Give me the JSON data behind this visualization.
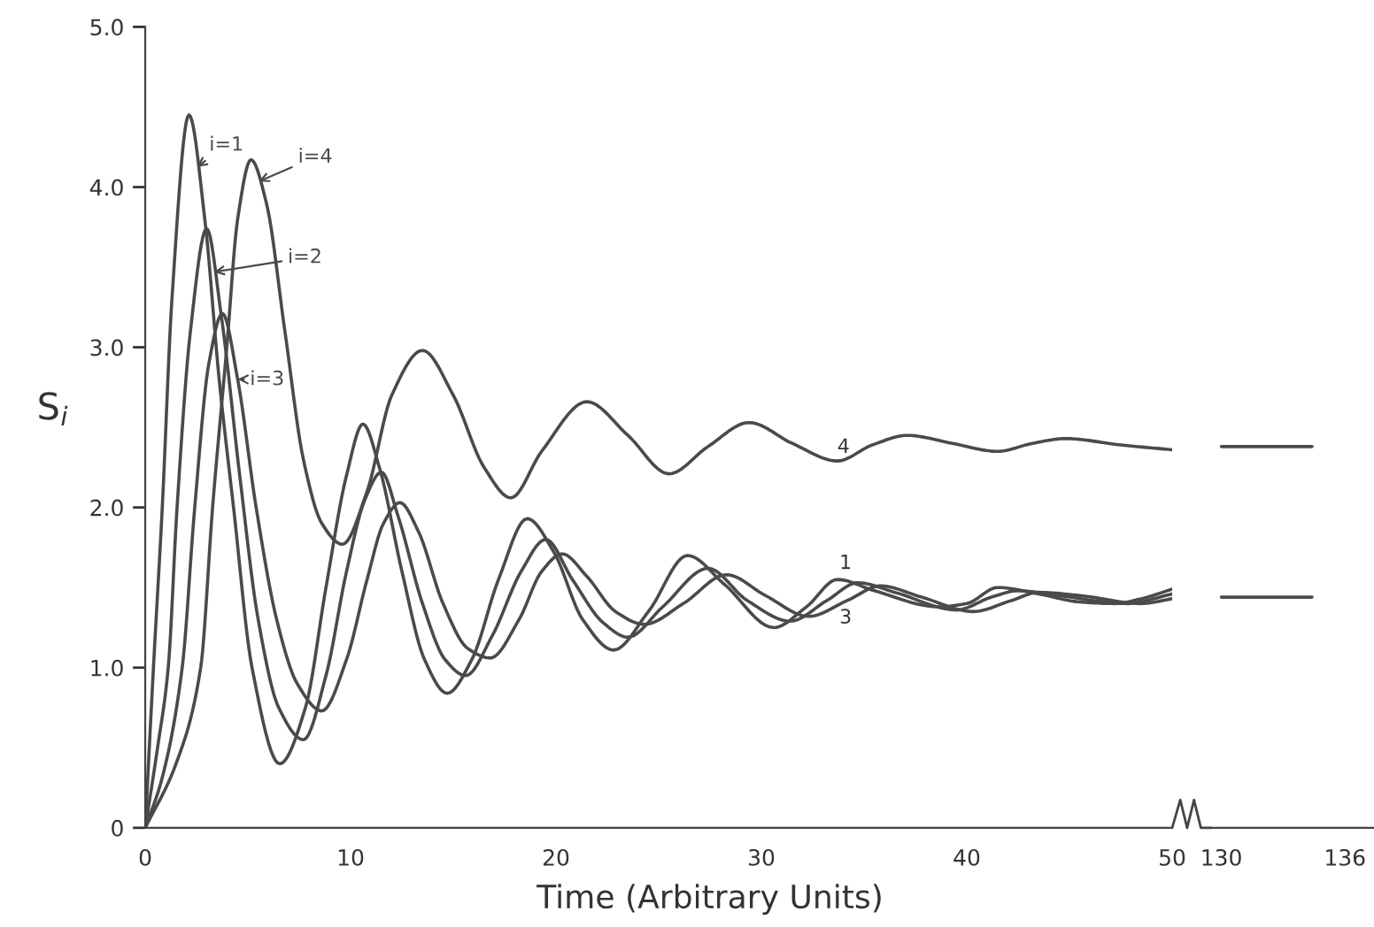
{
  "chart_data": [
    {
      "type": "line",
      "xlabel": "Time (Arbitrary Units)",
      "ylabel": "S$_{i}$",
      "xlim": [
        0,
        50
      ],
      "xticks": [
        0,
        10,
        20,
        30,
        40,
        50
      ],
      "ylim": [
        0,
        5
      ],
      "yticks": [
        0,
        {
          "value": 1,
          "label": "1.0"
        },
        {
          "value": 2,
          "label": "2.0"
        },
        {
          "value": 3,
          "label": "3.0"
        },
        {
          "value": 4,
          "label": "4.0"
        },
        {
          "value": 5,
          "label": "5.0"
        }
      ],
      "series": [
        {
          "name": "i=1",
          "color": "#4a4a4a",
          "x": [
            0,
            0.4,
            0.83,
            1.3,
            2.13,
            2.9,
            3.6,
            4.3,
            5.2,
            6.55,
            7.8,
            8.8,
            9.8,
            10.6,
            11.4,
            12.5,
            13.6,
            14.7,
            15.9,
            17.2,
            18.6,
            19.9,
            21.3,
            22.8,
            24.5,
            26.4,
            28.2,
            30.6,
            32.2,
            33.7,
            35.5,
            38.6,
            40,
            41.5,
            43.5,
            45.5,
            47.2,
            48.5,
            50
          ],
          "values": [
            0,
            1.0,
            2.0,
            3.3,
            4.45,
            3.8,
            2.8,
            2.0,
            1.0,
            0.4,
            0.75,
            1.5,
            2.2,
            2.52,
            2.25,
            1.6,
            1.05,
            0.84,
            1.05,
            1.55,
            1.93,
            1.72,
            1.3,
            1.11,
            1.35,
            1.7,
            1.52,
            1.25,
            1.38,
            1.55,
            1.48,
            1.38,
            1.4,
            1.5,
            1.46,
            1.41,
            1.4,
            1.43,
            1.49
          ]
        },
        {
          "name": "i=2",
          "color": "#4a4a4a",
          "x": [
            0,
            0.6,
            1.12,
            1.55,
            2.2,
            2.99,
            3.7,
            4.6,
            5.5,
            6.5,
            7.7,
            8.8,
            9.8,
            10.7,
            11.5,
            12.3,
            13.5,
            14.6,
            15.6,
            16.9,
            18.3,
            19.5,
            20.8,
            22.3,
            23.5,
            25.2,
            27.4,
            29.3,
            31.4,
            33.2,
            34.7,
            36.5,
            39.5,
            41.2,
            42.5,
            44.5,
            47.8,
            50
          ],
          "values": [
            0,
            0.5,
            1.0,
            2.0,
            3.1,
            3.74,
            3.2,
            2.2,
            1.3,
            0.75,
            0.55,
            0.95,
            1.6,
            2.05,
            2.22,
            1.95,
            1.4,
            1.05,
            0.95,
            1.2,
            1.6,
            1.8,
            1.55,
            1.28,
            1.19,
            1.38,
            1.62,
            1.42,
            1.29,
            1.42,
            1.53,
            1.47,
            1.36,
            1.44,
            1.48,
            1.45,
            1.4,
            1.46
          ]
        },
        {
          "name": "i=3",
          "color": "#4a4a4a",
          "x": [
            0,
            0.8,
            1.8,
            2.41,
            3.1,
            3.76,
            4.5,
            5.4,
            6.4,
            7.4,
            8.6,
            9.8,
            10.8,
            11.6,
            12.4,
            13.3,
            14.5,
            15.7,
            16.8,
            18.2,
            19.3,
            20.3,
            21.5,
            22.9,
            24.3,
            26.2,
            28.3,
            30.2,
            32.3,
            34.2,
            35.8,
            37.8,
            40.3,
            42.2,
            43.5,
            45.5,
            48.5,
            50
          ],
          "values": [
            0,
            0.3,
            1.0,
            2.0,
            2.9,
            3.21,
            2.8,
            2.0,
            1.3,
            0.9,
            0.73,
            1.05,
            1.55,
            1.9,
            2.03,
            1.85,
            1.4,
            1.12,
            1.06,
            1.3,
            1.6,
            1.71,
            1.57,
            1.35,
            1.27,
            1.4,
            1.58,
            1.45,
            1.32,
            1.42,
            1.51,
            1.44,
            1.35,
            1.42,
            1.47,
            1.45,
            1.4,
            1.43
          ]
        },
        {
          "name": "i=4",
          "color": "#4a4a4a",
          "x": [
            0,
            1.5,
            2.7,
            3.28,
            3.97,
            4.5,
            5.15,
            5.9,
            6.8,
            7.7,
            8.6,
            9.6,
            10.8,
            12.0,
            13.5,
            15.0,
            16.5,
            17.8,
            19.3,
            21.5,
            23.5,
            25.5,
            27.4,
            29.4,
            31.5,
            33.7,
            35.4,
            37.1,
            39.3,
            41.5,
            43.2,
            44.8,
            47.5,
            50
          ],
          "values": [
            0,
            0.4,
            1.0,
            2.0,
            3.0,
            3.8,
            4.17,
            3.9,
            3.1,
            2.3,
            1.9,
            1.77,
            2.1,
            2.7,
            2.98,
            2.7,
            2.25,
            2.06,
            2.35,
            2.66,
            2.45,
            2.21,
            2.38,
            2.53,
            2.4,
            2.29,
            2.39,
            2.45,
            2.4,
            2.35,
            2.4,
            2.43,
            2.39,
            2.36
          ]
        }
      ],
      "annotations": [
        "4",
        "1",
        "3"
      ],
      "legend": "top left"
    },
    {
      "type": "line",
      "xlim": [
        129.5,
        137.5
      ],
      "xticks": [
        130,
        136
      ],
      "ylim": [
        0,
        5
      ],
      "tick_labels": "x",
      "series": [
        {
          "color": "#4a4a4a",
          "x": [
            130,
            134.4
          ],
          "values": [
            2.38,
            2.38
          ]
        },
        {
          "color": "#4a4a4a",
          "x": [
            130,
            134.4
          ],
          "values": [
            1.44,
            1.44
          ]
        }
      ]
    }
  ]
}
